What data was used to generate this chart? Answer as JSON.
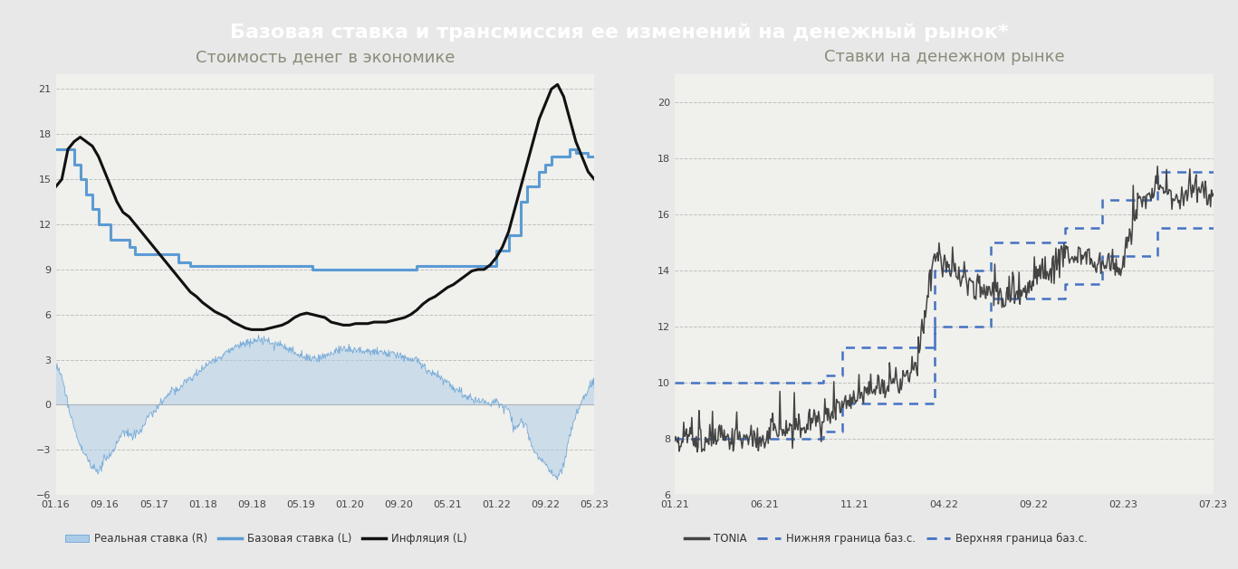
{
  "title": "Базовая ставка и трансмиссия ее изменений на денежный рынок*",
  "title_bg": "#0d2060",
  "title_color": "#ffffff",
  "left_subtitle": "Стоимость денег в экономике",
  "right_subtitle": "Ставки на денежном рынке",
  "subtitle_color": "#8b8b7a",
  "bg_color": "#e8e8e8",
  "plot_bg": "#f0f0ec",
  "grid_color": "#c0c0c0",
  "left_ylim": [
    -6,
    22
  ],
  "left_yticks": [
    -6,
    -3,
    0,
    3,
    6,
    9,
    12,
    15,
    18,
    21
  ],
  "right_ylim": [
    6,
    21
  ],
  "right_yticks": [
    6,
    8,
    10,
    12,
    14,
    16,
    18,
    20
  ],
  "left_xticks": [
    "01.16",
    "09.16",
    "05.17",
    "01.18",
    "09.18",
    "05.19",
    "01.20",
    "09.20",
    "05.21",
    "01.22",
    "09.22",
    "05.23"
  ],
  "right_xticks": [
    "01.21",
    "06.21",
    "11.21",
    "04.22",
    "09.22",
    "02.23",
    "07.23"
  ],
  "legend1_items": [
    "Реальная ставка (R)",
    "Базовая ставка (L)",
    "Инфляция (L)"
  ],
  "legend2_items": [
    "TONIA",
    "Нижняя граница баз.с.",
    "Верхняя граница баз.с."
  ],
  "real_rate_color": "#aacce8",
  "base_rate_color": "#5b9bd5",
  "inflation_color": "#111111",
  "tonia_color": "#444444",
  "bound_color": "#4472c4"
}
